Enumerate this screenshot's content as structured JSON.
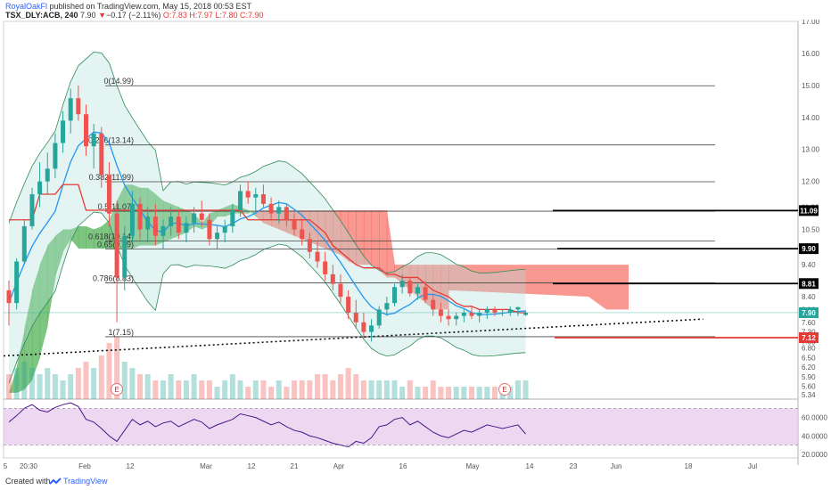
{
  "header": {
    "username": "RoyalOakFl",
    "published": " published on TradingView.com, May 15, 2018 00:53 EST",
    "symbol": "TSX_DLY:ACB, 240",
    "last": "7.90",
    "arrow": "▼",
    "change": "−0.17 (−2.11%)",
    "ohlc": "O:7.83 H:7.97 L:7.80 C:7.90"
  },
  "footer": {
    "created": "Created with",
    "brand": "TradingView"
  },
  "colors": {
    "bull": "#26a69a",
    "bear": "#ef5350",
    "cloud_green": "#4caf50",
    "cloud_red": "#f44336",
    "bollinger": "#2e8b57",
    "rsi_band": "#e1bee7",
    "fib": "#444444"
  },
  "chart_data": {
    "type": "candlestick",
    "price_axis": {
      "ylim": [
        5.2,
        17.0
      ],
      "tick_labels": [
        "17.00",
        "16.00",
        "15.00",
        "14.00",
        "13.00",
        "12.00",
        "11.20",
        "10.50",
        "9.90",
        "9.40",
        "8.80",
        "8.40",
        "8.00",
        "7.60",
        "7.30",
        "7.00",
        "6.80",
        "6.50",
        "6.20",
        "5.90",
        "5.60",
        "5.34"
      ]
    },
    "rsi_axis": {
      "ylim": [
        16,
        80
      ],
      "tick_labels": [
        "60.0000",
        "40.0000",
        "20.0000"
      ],
      "band": [
        30,
        70
      ]
    },
    "time_axis": {
      "tick_labels": [
        "5",
        "20:30",
        "Feb",
        "12",
        "Mar",
        "12",
        "21",
        "Apr",
        "16",
        "May",
        "14",
        "23",
        "Jun",
        "18",
        "Jul"
      ]
    },
    "fibonacci": [
      {
        "label": "0(14.99)",
        "value": 14.99
      },
      {
        "label": "0.236(13.14)",
        "value": 13.14
      },
      {
        "label": "0.382(11.99)",
        "value": 11.99
      },
      {
        "label": "0.5(11.07)",
        "value": 11.07
      },
      {
        "label": "0.618(10.14)",
        "value": 10.14
      },
      {
        "label": "0.65(9.89)",
        "value": 9.89
      },
      {
        "label": "0.786(8.83)",
        "value": 8.83
      },
      {
        "label": "1(7.15)",
        "value": 7.15
      }
    ],
    "price_tags": [
      {
        "label": "11.09",
        "value": 11.09,
        "color": "#000000"
      },
      {
        "label": "9.90",
        "value": 9.9,
        "color": "#000000"
      },
      {
        "label": "8.81",
        "value": 8.81,
        "color": "#000000"
      },
      {
        "label": "7.90",
        "value": 7.9,
        "color": "#26a69a"
      },
      {
        "label": "7.12",
        "value": 7.12,
        "color": "#e53935"
      }
    ],
    "markers": [
      "E",
      "E"
    ],
    "candles": [
      [
        8.6,
        8.9,
        7.5,
        8.2
      ],
      [
        8.2,
        9.6,
        8.0,
        9.5
      ],
      [
        9.5,
        10.8,
        9.4,
        10.6
      ],
      [
        10.6,
        11.8,
        10.5,
        11.6
      ],
      [
        11.6,
        12.6,
        11.2,
        12.0
      ],
      [
        12.0,
        12.9,
        11.6,
        12.4
      ],
      [
        12.4,
        13.5,
        12.1,
        13.2
      ],
      [
        13.2,
        14.2,
        12.9,
        13.9
      ],
      [
        13.9,
        14.9,
        13.5,
        14.6
      ],
      [
        14.6,
        15.0,
        13.9,
        14.1
      ],
      [
        14.1,
        14.4,
        12.8,
        13.1
      ],
      [
        13.1,
        13.8,
        12.4,
        13.5
      ],
      [
        13.5,
        13.7,
        11.8,
        12.2
      ],
      [
        12.2,
        12.6,
        10.6,
        11.0
      ],
      [
        11.0,
        11.4,
        7.6,
        9.0
      ],
      [
        9.0,
        10.6,
        8.6,
        10.3
      ],
      [
        10.3,
        11.7,
        10.1,
        11.3
      ],
      [
        11.3,
        11.5,
        10.2,
        10.5
      ],
      [
        10.5,
        11.2,
        10.1,
        10.9
      ],
      [
        10.9,
        11.3,
        10.0,
        10.3
      ],
      [
        10.3,
        10.8,
        9.9,
        10.6
      ],
      [
        10.6,
        11.2,
        10.3,
        10.9
      ],
      [
        10.9,
        11.1,
        10.2,
        10.4
      ],
      [
        10.4,
        10.9,
        10.1,
        10.7
      ],
      [
        10.7,
        11.2,
        10.4,
        11.0
      ],
      [
        11.0,
        11.4,
        10.6,
        10.8
      ],
      [
        10.8,
        11.0,
        10.0,
        10.2
      ],
      [
        10.2,
        10.6,
        9.9,
        10.4
      ],
      [
        10.4,
        10.8,
        10.1,
        10.6
      ],
      [
        10.6,
        11.3,
        10.4,
        11.1
      ],
      [
        11.1,
        11.9,
        10.9,
        11.7
      ],
      [
        11.7,
        12.0,
        11.3,
        11.5
      ],
      [
        11.5,
        11.8,
        11.1,
        11.6
      ],
      [
        11.6,
        11.9,
        11.2,
        11.3
      ],
      [
        11.3,
        11.5,
        10.8,
        11.0
      ],
      [
        11.0,
        11.4,
        10.7,
        11.2
      ],
      [
        11.2,
        11.3,
        10.6,
        10.8
      ],
      [
        10.8,
        11.0,
        10.3,
        10.5
      ],
      [
        10.5,
        10.8,
        10.0,
        10.2
      ],
      [
        10.2,
        10.4,
        9.6,
        9.8
      ],
      [
        9.8,
        10.1,
        9.3,
        9.5
      ],
      [
        9.5,
        9.8,
        8.9,
        9.1
      ],
      [
        9.1,
        9.4,
        8.6,
        8.8
      ],
      [
        8.8,
        9.1,
        8.2,
        8.4
      ],
      [
        8.4,
        8.6,
        7.7,
        7.9
      ],
      [
        7.9,
        8.3,
        7.4,
        7.6
      ],
      [
        7.6,
        7.9,
        7.1,
        7.3
      ],
      [
        7.3,
        7.7,
        7.0,
        7.5
      ],
      [
        7.5,
        8.1,
        7.4,
        8.0
      ],
      [
        8.0,
        8.4,
        7.8,
        8.2
      ],
      [
        8.2,
        8.8,
        8.1,
        8.7
      ],
      [
        8.7,
        9.1,
        8.5,
        8.9
      ],
      [
        8.9,
        9.0,
        8.4,
        8.5
      ],
      [
        8.5,
        8.8,
        8.3,
        8.7
      ],
      [
        8.7,
        8.9,
        8.2,
        8.3
      ],
      [
        8.3,
        8.5,
        7.8,
        8.0
      ],
      [
        8.0,
        8.2,
        7.6,
        7.8
      ],
      [
        7.8,
        8.0,
        7.5,
        7.7
      ],
      [
        7.7,
        7.9,
        7.5,
        7.8
      ],
      [
        7.8,
        8.0,
        7.6,
        7.9
      ],
      [
        7.9,
        8.1,
        7.7,
        7.8
      ],
      [
        7.8,
        8.0,
        7.6,
        7.9
      ],
      [
        7.9,
        8.1,
        7.7,
        8.0
      ],
      [
        8.0,
        8.1,
        7.8,
        7.9
      ],
      [
        7.9,
        8.0,
        7.8,
        7.9
      ],
      [
        7.9,
        8.1,
        7.8,
        8.0
      ],
      [
        8.0,
        8.1,
        7.8,
        8.07
      ],
      [
        7.83,
        7.97,
        7.8,
        7.9
      ]
    ],
    "volume": [
      0.4,
      0.5,
      0.6,
      0.5,
      0.4,
      0.5,
      0.4,
      0.3,
      0.4,
      0.5,
      0.6,
      0.5,
      0.7,
      0.9,
      1.0,
      0.6,
      0.5,
      0.4,
      0.4,
      0.3,
      0.3,
      0.4,
      0.3,
      0.3,
      0.4,
      0.3,
      0.3,
      0.2,
      0.3,
      0.4,
      0.3,
      0.2,
      0.3,
      0.3,
      0.2,
      0.3,
      0.2,
      0.3,
      0.3,
      0.3,
      0.4,
      0.4,
      0.3,
      0.4,
      0.5,
      0.4,
      0.3,
      0.3,
      0.3,
      0.3,
      0.3,
      0.2,
      0.3,
      0.2,
      0.2,
      0.3,
      0.2,
      0.2,
      0.2,
      0.2,
      0.2,
      0.2,
      0.2,
      0.2,
      0.2,
      0.2,
      0.3,
      0.3
    ],
    "rsi": [
      55,
      62,
      70,
      74,
      68,
      66,
      71,
      74,
      76,
      72,
      58,
      55,
      48,
      40,
      34,
      46,
      58,
      52,
      56,
      50,
      54,
      56,
      50,
      54,
      58,
      55,
      48,
      52,
      55,
      58,
      64,
      62,
      60,
      56,
      52,
      55,
      50,
      46,
      44,
      40,
      38,
      35,
      32,
      30,
      28,
      34,
      32,
      38,
      50,
      52,
      58,
      60,
      52,
      56,
      50,
      44,
      40,
      38,
      42,
      46,
      44,
      48,
      52,
      50,
      48,
      50,
      52,
      42
    ],
    "kijun": [
      10.8,
      10.8,
      10.8,
      10.8,
      11.6,
      11.6,
      11.6,
      11.9,
      11.9,
      11.9,
      11.1,
      11.1,
      11.1,
      11.1,
      11.1,
      11.1,
      11.1,
      11.1,
      11.1,
      11.1,
      11.1,
      11.1,
      11.1,
      11.1,
      11.1,
      11.1,
      11.1,
      11.1,
      11.1,
      11.1,
      11.1,
      10.8,
      10.8,
      10.8,
      10.8,
      10.8,
      10.8,
      10.8,
      10.8,
      10.8,
      10.6,
      10.4,
      10.0,
      9.8,
      9.6,
      9.4,
      9.3,
      9.3,
      9.3,
      9.1,
      9.1,
      9.0,
      9.0,
      9.0,
      8.8,
      8.6,
      8.5,
      8.4,
      8.2,
      8.1,
      8.1,
      8.0,
      8.0,
      8.0,
      8.0,
      8.0,
      7.9,
      7.9
    ],
    "cloud": [
      {
        "a": 5.4,
        "b": 5.4,
        "lead": false
      },
      {
        "a": 6.2,
        "b": 5.4,
        "lead": false
      },
      {
        "a": 7.4,
        "b": 5.5,
        "lead": false
      },
      {
        "a": 8.6,
        "b": 5.8,
        "lead": false
      },
      {
        "a": 9.4,
        "b": 6.5,
        "lead": false
      },
      {
        "a": 10.0,
        "b": 7.5,
        "lead": false
      },
      {
        "a": 10.3,
        "b": 9.0,
        "lead": false
      },
      {
        "a": 10.5,
        "b": 9.8,
        "lead": false
      },
      {
        "a": 10.5,
        "b": 10.2,
        "lead": false
      },
      {
        "a": 10.6,
        "b": 9.9,
        "lead": false
      },
      {
        "a": 10.6,
        "b": 9.9,
        "lead": false
      },
      {
        "a": 10.5,
        "b": 9.9,
        "lead": false
      },
      {
        "a": 10.6,
        "b": 9.9,
        "lead": false
      },
      {
        "a": 10.8,
        "b": 9.9,
        "lead": false
      },
      {
        "a": 11.4,
        "b": 9.9,
        "lead": false
      },
      {
        "a": 11.9,
        "b": 9.9,
        "lead": false
      },
      {
        "a": 11.9,
        "b": 9.9,
        "lead": false
      },
      {
        "a": 11.8,
        "b": 10.0,
        "lead": false
      },
      {
        "a": 11.8,
        "b": 10.0,
        "lead": false
      },
      {
        "a": 11.6,
        "b": 10.0,
        "lead": false
      },
      {
        "a": 11.4,
        "b": 10.1,
        "lead": false
      },
      {
        "a": 11.3,
        "b": 10.2,
        "lead": false
      },
      {
        "a": 11.2,
        "b": 10.3,
        "lead": false
      },
      {
        "a": 11.1,
        "b": 10.4,
        "lead": false
      },
      {
        "a": 11.0,
        "b": 10.6,
        "lead": false
      },
      {
        "a": 10.7,
        "b": 10.5,
        "lead": false
      },
      {
        "a": 11.0,
        "b": 10.6,
        "lead": false
      },
      {
        "a": 11.1,
        "b": 10.9,
        "lead": false
      },
      {
        "a": 11.2,
        "b": 10.9,
        "lead": false
      },
      {
        "a": 11.3,
        "b": 11.0,
        "lead": false
      },
      {
        "a": 11.2,
        "b": 11.0,
        "lead": false
      },
      {
        "a": 11.1,
        "b": 11.0,
        "lead": false
      },
      {
        "a": 10.9,
        "b": 11.1,
        "lead": false
      },
      {
        "a": 10.7,
        "b": 11.1,
        "lead": false
      },
      {
        "a": 10.6,
        "b": 11.1,
        "lead": false
      },
      {
        "a": 10.5,
        "b": 11.1,
        "lead": false
      },
      {
        "a": 10.4,
        "b": 11.1,
        "lead": false
      },
      {
        "a": 10.3,
        "b": 11.1,
        "lead": false
      },
      {
        "a": 10.2,
        "b": 11.1,
        "lead": false
      },
      {
        "a": 10.1,
        "b": 11.1,
        "lead": false
      },
      {
        "a": 10.0,
        "b": 11.1,
        "lead": false
      },
      {
        "a": 9.9,
        "b": 11.1,
        "lead": false
      },
      {
        "a": 9.8,
        "b": 11.1,
        "lead": false
      },
      {
        "a": 9.7,
        "b": 11.1,
        "lead": false
      },
      {
        "a": 9.5,
        "b": 11.1,
        "lead": false
      },
      {
        "a": 9.4,
        "b": 11.1,
        "lead": false
      },
      {
        "a": 9.4,
        "b": 11.1,
        "lead": false
      },
      {
        "a": 9.4,
        "b": 11.1,
        "lead": false
      },
      {
        "a": 9.2,
        "b": 11.1,
        "lead": false
      },
      {
        "a": 9.0,
        "b": 11.1,
        "lead": false
      },
      {
        "a": 9.0,
        "b": 9.4,
        "lead": false
      },
      {
        "a": 8.8,
        "b": 9.4,
        "lead": false
      },
      {
        "a": 8.6,
        "b": 9.4,
        "lead": false
      },
      {
        "a": 8.4,
        "b": 9.4,
        "lead": false
      },
      {
        "a": 8.2,
        "b": 9.4,
        "lead": false
      },
      {
        "a": 8.0,
        "b": 9.4,
        "lead": false
      },
      {
        "a": 8.0,
        "b": 9.4,
        "lead": false
      },
      {
        "a": 8.0,
        "b": 9.4,
        "lead": false
      }
    ],
    "trendline": [
      [
        0,
        6.55
      ],
      [
        90,
        7.7
      ]
    ]
  }
}
